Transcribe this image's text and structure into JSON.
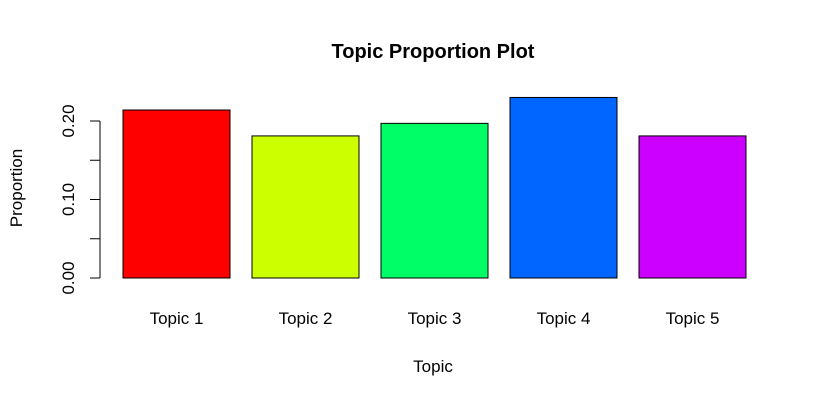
{
  "chart_data": {
    "type": "bar",
    "title": "Topic Proportion Plot",
    "xlabel": "Topic",
    "ylabel": "Proportion",
    "categories": [
      "Topic 1",
      "Topic 2",
      "Topic 3",
      "Topic 4",
      "Topic 5"
    ],
    "values": [
      0.214,
      0.181,
      0.197,
      0.23,
      0.181
    ],
    "colors": [
      "#FF0000",
      "#CCFF00",
      "#00FF66",
      "#0066FF",
      "#CC00FF"
    ],
    "ylim": [
      0,
      0.23
    ],
    "yticks": [
      0.0,
      0.05,
      0.1,
      0.15,
      0.2
    ],
    "ytick_labels": [
      "0.00",
      "",
      "0.10",
      "",
      "0.20"
    ],
    "grid": false,
    "legend": "none"
  }
}
